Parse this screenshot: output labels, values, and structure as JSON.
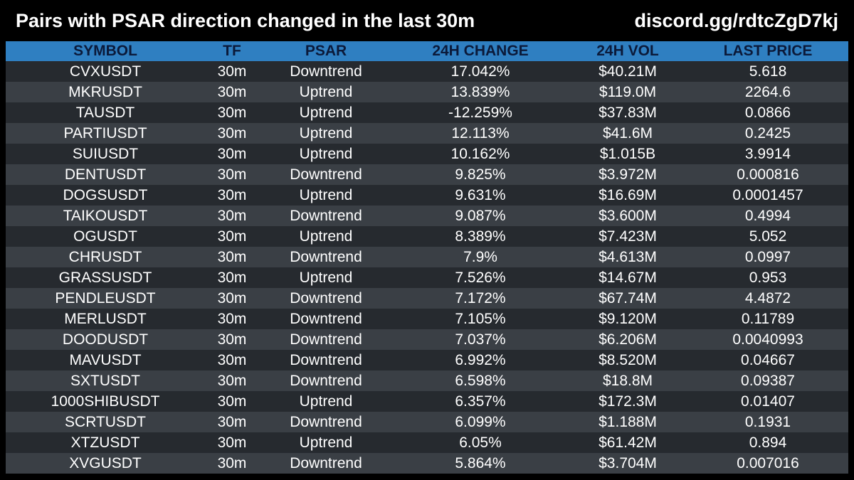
{
  "header": {
    "title": "Pairs with PSAR direction changed in the last 30m",
    "discord": "discord.gg/rdtcZgD7kj"
  },
  "columns": [
    "SYMBOL",
    "TF",
    "PSAR",
    "24H CHANGE",
    "24H VOL",
    "LAST PRICE"
  ],
  "rows": [
    [
      "CVXUSDT",
      "30m",
      "Downtrend",
      "17.042%",
      "$40.21M",
      "5.618"
    ],
    [
      "MKRUSDT",
      "30m",
      "Uptrend",
      "13.839%",
      "$119.0M",
      "2264.6"
    ],
    [
      "TAUSDT",
      "30m",
      "Uptrend",
      "-12.259%",
      "$37.83M",
      "0.0866"
    ],
    [
      "PARTIUSDT",
      "30m",
      "Uptrend",
      "12.113%",
      "$41.6M",
      "0.2425"
    ],
    [
      "SUIUSDT",
      "30m",
      "Uptrend",
      "10.162%",
      "$1.015B",
      "3.9914"
    ],
    [
      "DENTUSDT",
      "30m",
      "Downtrend",
      "9.825%",
      "$3.972M",
      "0.000816"
    ],
    [
      "DOGSUSDT",
      "30m",
      "Uptrend",
      "9.631%",
      "$16.69M",
      "0.0001457"
    ],
    [
      "TAIKOUSDT",
      "30m",
      "Downtrend",
      "9.087%",
      "$3.600M",
      "0.4994"
    ],
    [
      "OGUSDT",
      "30m",
      "Uptrend",
      "8.389%",
      "$7.423M",
      "5.052"
    ],
    [
      "CHRUSDT",
      "30m",
      "Downtrend",
      "7.9%",
      "$4.613M",
      "0.0997"
    ],
    [
      "GRASSUSDT",
      "30m",
      "Uptrend",
      "7.526%",
      "$14.67M",
      "0.953"
    ],
    [
      "PENDLEUSDT",
      "30m",
      "Downtrend",
      "7.172%",
      "$67.74M",
      "4.4872"
    ],
    [
      "MERLUSDT",
      "30m",
      "Downtrend",
      "7.105%",
      "$9.120M",
      "0.11789"
    ],
    [
      "DOODUSDT",
      "30m",
      "Downtrend",
      "7.037%",
      "$6.206M",
      "0.0040993"
    ],
    [
      "MAVUSDT",
      "30m",
      "Downtrend",
      "6.992%",
      "$8.520M",
      "0.04667"
    ],
    [
      "SXTUSDT",
      "30m",
      "Downtrend",
      "6.598%",
      "$18.8M",
      "0.09387"
    ],
    [
      "1000SHIBUSDT",
      "30m",
      "Uptrend",
      "6.357%",
      "$172.3M",
      "0.01407"
    ],
    [
      "SCRTUSDT",
      "30m",
      "Downtrend",
      "6.099%",
      "$1.188M",
      "0.1931"
    ],
    [
      "XTZUSDT",
      "30m",
      "Uptrend",
      "6.05%",
      "$61.42M",
      "0.894"
    ],
    [
      "XVGUSDT",
      "30m",
      "Downtrend",
      "5.864%",
      "$3.704M",
      "0.007016"
    ]
  ],
  "colors": {
    "background": "#000000",
    "header_row": "#2f7fc1",
    "header_text": "#0b1a3a",
    "row_dark": "#262a2f",
    "row_light": "#3a3f45",
    "text": "#ffffff"
  }
}
